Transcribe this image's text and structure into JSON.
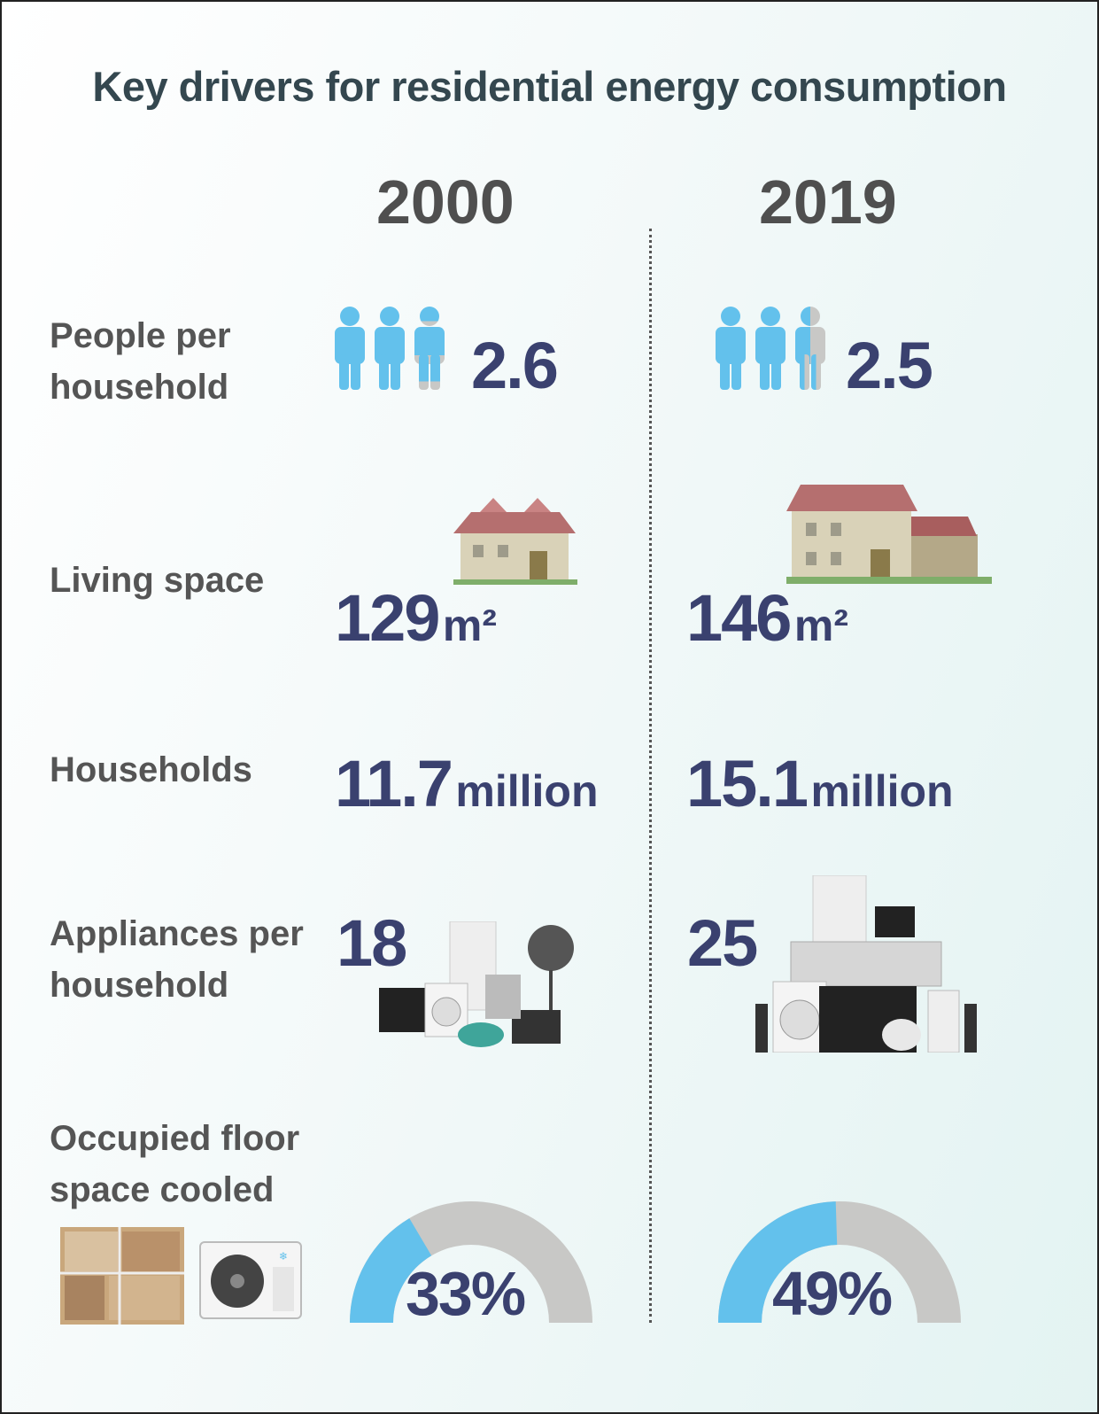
{
  "title": "Key drivers for residential energy consumption",
  "years": [
    "2000",
    "2019"
  ],
  "colors": {
    "accent_blue": "#63c1ec",
    "gray": "#c8c8c6",
    "value_navy": "#3a416f"
  },
  "rows": {
    "people": {
      "label_line1": "People per",
      "label_line2": "household",
      "values": [
        "2.6",
        "2.5"
      ],
      "icon": "person-icon"
    },
    "living_space": {
      "label": "Living space",
      "values": [
        "129",
        "146"
      ],
      "unit": "m²",
      "icon": "house-icon"
    },
    "households": {
      "label": "Households",
      "values": [
        "11.7",
        "15.1"
      ],
      "unit": "million"
    },
    "appliances": {
      "label_line1": "Appliances per",
      "label_line2": "household",
      "values": [
        "18",
        "25"
      ],
      "icon": "appliances-icon"
    },
    "cooled": {
      "label_line1": "Occupied floor",
      "label_line2": "space cooled",
      "values": [
        "33%",
        "49%"
      ],
      "percents": [
        33,
        49
      ],
      "icons": [
        "floor-plan-icon",
        "air-conditioner-icon"
      ]
    }
  }
}
